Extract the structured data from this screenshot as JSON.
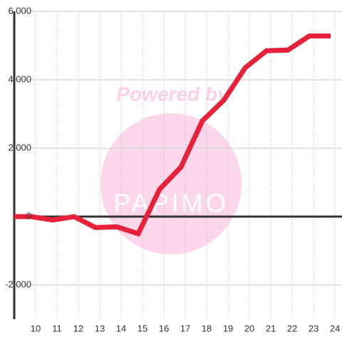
{
  "chart_data": {
    "type": "line",
    "x": [
      9,
      9.8,
      10.8,
      11.8,
      12.8,
      13.8,
      14.8,
      15.8,
      16.8,
      17.8,
      18.8,
      19.8,
      20.8,
      21.8,
      22.8,
      23.8
    ],
    "series": [
      {
        "color": "#e8213a",
        "values": [
          0,
          0,
          -100,
          0,
          -320,
          -300,
          -500,
          800,
          1450,
          2800,
          3400,
          4350,
          4850,
          4870,
          5280,
          5280
        ]
      }
    ],
    "xlim": [
      9,
      24.33
    ],
    "xticks": [
      10,
      11,
      12,
      13,
      14,
      15,
      16,
      17,
      18,
      19,
      20,
      21,
      22,
      23,
      24
    ],
    "ylim": [
      -3000,
      6000
    ],
    "yticks": [
      {
        "value": -2000,
        "label": "-2,000"
      },
      0,
      {
        "value": 2000,
        "label": "2,000"
      },
      {
        "value": 4000,
        "label": "4,000"
      },
      {
        "value": 6000,
        "label": "6,000"
      }
    ],
    "grid": true,
    "watermark": {
      "title": "Powered by",
      "brand": "PAPIMO"
    }
  }
}
